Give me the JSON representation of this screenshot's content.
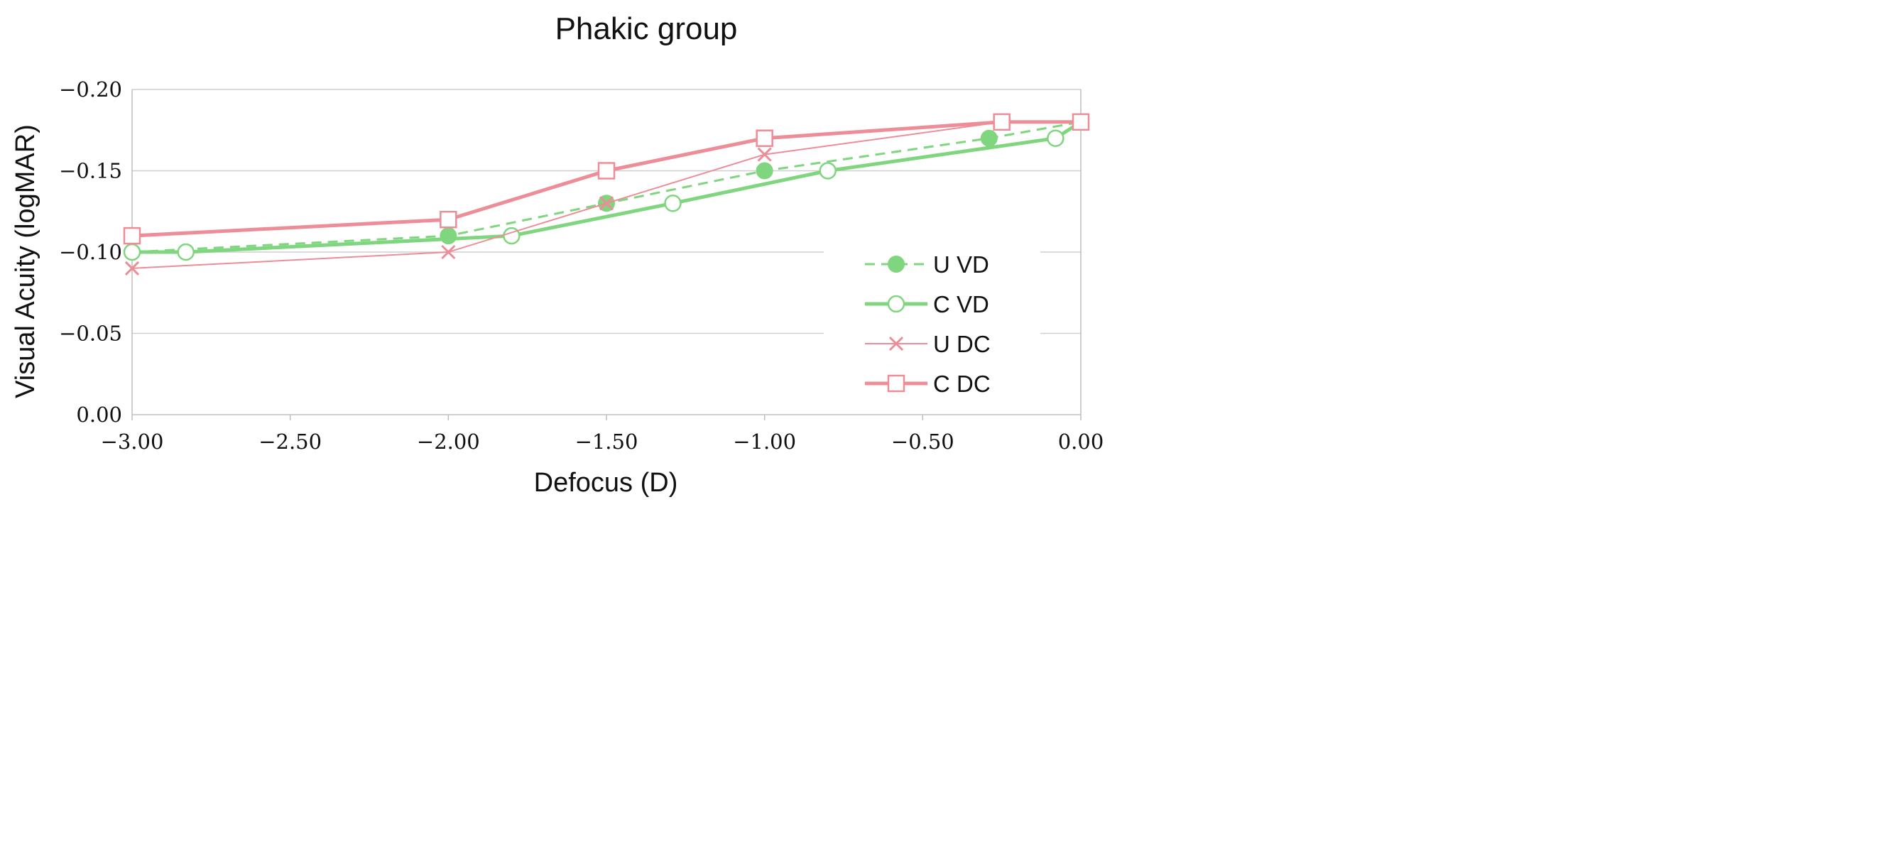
{
  "chart_data": {
    "type": "line",
    "title": "Phakic group",
    "xlabel": "Defocus (D)",
    "ylabel": "Visual Acuity (logMAR)",
    "xlim": [
      -3.0,
      0.0
    ],
    "ylim": [
      0.0,
      -0.2
    ],
    "x_ticks": [
      "−3.00",
      "−2.50",
      "−2.00",
      "−1.50",
      "−1.00",
      "−0.50",
      "0.00"
    ],
    "y_ticks": [
      "0.00",
      "−0.05",
      "−0.10",
      "−0.15",
      "−0.20"
    ],
    "grid": true,
    "legend_position": "bottom-right",
    "series": [
      {
        "name": "U VD",
        "color": "#7fd67f",
        "line": "dashed",
        "marker": "filled-circle",
        "x": [
          -3.0,
          -2.0,
          -1.5,
          -1.0,
          -0.29,
          0.0
        ],
        "y": [
          -0.1,
          -0.11,
          -0.13,
          -0.15,
          -0.17,
          -0.18
        ]
      },
      {
        "name": "C VD",
        "color": "#7fd67f",
        "line": "solid-thick",
        "marker": "open-circle",
        "x": [
          -3.0,
          -2.83,
          -1.8,
          -1.29,
          -0.8,
          -0.08,
          0.0
        ],
        "y": [
          -0.1,
          -0.1,
          -0.11,
          -0.13,
          -0.15,
          -0.17,
          -0.18
        ]
      },
      {
        "name": "U DC",
        "color": "#ec8d97",
        "line": "solid-thin",
        "marker": "cross",
        "x": [
          -3.0,
          -2.0,
          -1.5,
          -1.0,
          -0.25,
          0.0
        ],
        "y": [
          -0.09,
          -0.1,
          -0.13,
          -0.16,
          -0.18,
          -0.18
        ]
      },
      {
        "name": "C DC",
        "color": "#ec8d97",
        "line": "solid-thick",
        "marker": "open-square",
        "x": [
          -3.0,
          -2.0,
          -1.5,
          -1.0,
          -0.25,
          0.0
        ],
        "y": [
          -0.11,
          -0.12,
          -0.15,
          -0.17,
          -0.18,
          -0.18
        ]
      }
    ]
  }
}
